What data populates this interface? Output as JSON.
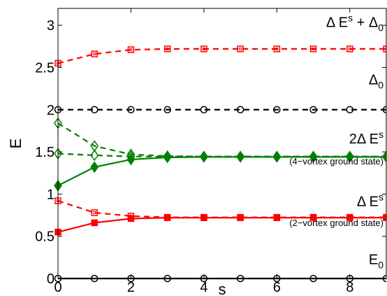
{
  "chart_data": {
    "type": "line",
    "xlabel": "s",
    "ylabel": "E",
    "xlim": [
      0,
      9
    ],
    "ylim": [
      0,
      3.2
    ],
    "x_ticks": [
      0,
      2,
      4,
      6,
      8
    ],
    "y_ticks": [
      0,
      0.5,
      1,
      1.5,
      2,
      2.5,
      3
    ],
    "x_tick_labels": [
      "0",
      "2",
      "4",
      "6",
      "8"
    ],
    "y_tick_labels": [
      "0",
      "0.5",
      "1",
      "1.5",
      "2",
      "2.5",
      "3"
    ],
    "grid": false,
    "x": [
      0,
      1,
      2,
      3,
      4,
      5,
      6,
      7,
      8,
      9
    ],
    "series": [
      {
        "color": "#ff0000",
        "style": "dashed",
        "marker": "square-open",
        "values": [
          2.55,
          2.66,
          2.71,
          2.72,
          2.72,
          2.72,
          2.72,
          2.72,
          2.72,
          2.72
        ]
      },
      {
        "color": "#000000",
        "style": "dashed",
        "marker": "circle-open",
        "values": [
          2.0,
          2.0,
          2.0,
          2.0,
          2.0,
          2.0,
          2.0,
          2.0,
          2.0,
          2.0
        ]
      },
      {
        "color": "#008000",
        "style": "dashed",
        "marker": "diamond-open",
        "values": [
          1.84,
          1.57,
          1.47,
          1.45,
          1.445,
          1.445,
          1.445,
          1.445,
          1.445,
          1.445
        ]
      },
      {
        "color": "#008000",
        "style": "dashed",
        "marker": "diamond-open",
        "values": [
          1.48,
          1.46,
          1.445,
          1.445,
          1.445,
          1.445,
          1.445,
          1.445,
          1.445,
          1.445
        ]
      },
      {
        "color": "#008000",
        "style": "solid",
        "marker": "diamond-filled",
        "values": [
          1.1,
          1.32,
          1.41,
          1.435,
          1.44,
          1.44,
          1.44,
          1.44,
          1.44,
          1.44
        ]
      },
      {
        "color": "#ff0000",
        "style": "dashed",
        "marker": "square-open",
        "values": [
          0.92,
          0.78,
          0.74,
          0.725,
          0.725,
          0.725,
          0.725,
          0.725,
          0.725,
          0.725
        ]
      },
      {
        "color": "#ff0000",
        "style": "solid",
        "marker": "square-filled",
        "values": [
          0.55,
          0.66,
          0.71,
          0.72,
          0.72,
          0.72,
          0.72,
          0.72,
          0.72,
          0.72
        ]
      },
      {
        "color": "#000000",
        "style": "solid",
        "marker": "circle-open",
        "values": [
          0,
          0,
          0,
          0,
          0,
          0,
          0,
          0,
          0,
          0
        ]
      }
    ],
    "annotations": [
      {
        "text": "Δ E",
        "sup": "s",
        "tail": " + Δ",
        "sub": "0",
        "y": 2.98
      },
      {
        "text": "Δ",
        "sup": "",
        "tail": "",
        "sub": "0",
        "y": 2.3
      },
      {
        "text": "2Δ E",
        "sup": "s",
        "tail": "",
        "sub": "",
        "y": 1.6
      },
      {
        "text": "(4−vortex ground state)",
        "sup": "",
        "tail": "",
        "sub": "",
        "y": 1.35,
        "small": true
      },
      {
        "text": "Δ E",
        "sup": "s",
        "tail": "",
        "sub": "",
        "y": 0.86
      },
      {
        "text": "(2−vortex ground state)",
        "sup": "",
        "tail": "",
        "sub": "",
        "y": 0.62,
        "small": true
      },
      {
        "text": "E",
        "sup": "",
        "tail": "",
        "sub": "0",
        "y": 0.17
      }
    ]
  }
}
